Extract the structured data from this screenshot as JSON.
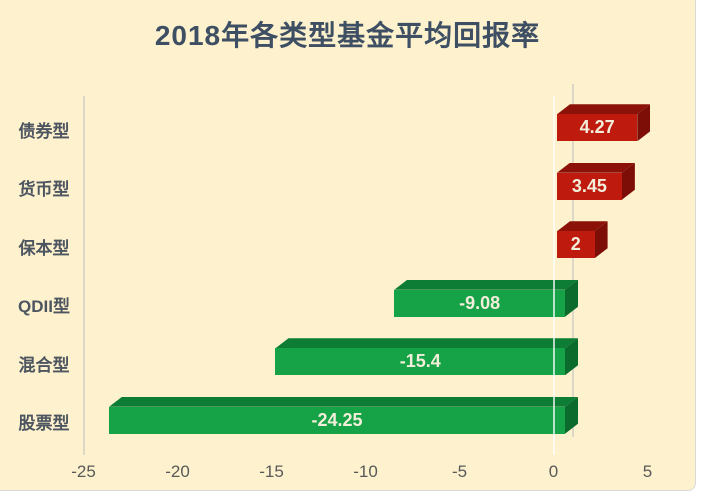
{
  "window": {
    "background": "#FFFFFF",
    "panel_background": "#FDF2CD"
  },
  "chart_data": {
    "type": "bar",
    "style": "3d-horizontal-bar",
    "orientation": "horizontal",
    "title": "2018年各类型基金平均回报率",
    "categories": [
      "债券型",
      "货币型",
      "保本型",
      "QDII型",
      "混合型",
      "股票型"
    ],
    "values": [
      4.27,
      3.45,
      2,
      -9.08,
      -15.4,
      -24.25
    ],
    "value_labels": [
      "4.27",
      "3.45",
      "2",
      "-9.08",
      "-15.4",
      "-24.25"
    ],
    "x_tick_labels": [
      "-25",
      "-20",
      "-15",
      "-10",
      "-5",
      "0",
      "5"
    ],
    "x_tick_values": [
      -25,
      -20,
      -15,
      -10,
      -5,
      0,
      5
    ],
    "xlim": [
      -25,
      5
    ],
    "ylabel": "",
    "xlabel": "",
    "legend": "none",
    "gridlines": "vertical lines at left edge and zero only",
    "colors": {
      "positive_bar": "#BE1A0D",
      "positive_bar_shade": "#8C1109",
      "positive_bar_end": "#7C0E07",
      "negative_bar": "#16A347",
      "negative_bar_shade": "#0D7D35",
      "negative_bar_end": "#0A6B2C",
      "bar_value_text": "#F2EEDA",
      "title_text": "#3E4E63",
      "category_text": "#4D5560",
      "tick_text": "#595959",
      "background": "#FDF2CD"
    }
  }
}
